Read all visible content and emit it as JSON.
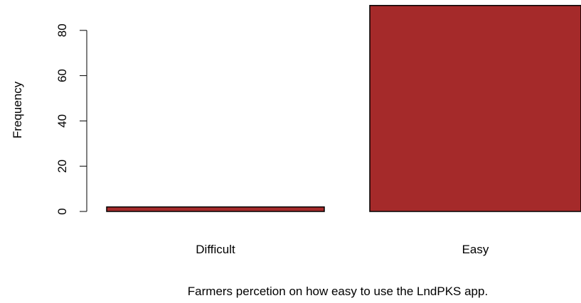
{
  "chart_data": {
    "type": "bar",
    "categories": [
      "Difficult",
      "Easy"
    ],
    "values": [
      2,
      91
    ],
    "xlabel": "Farmers percetion on how easy to use the LndPKS app.",
    "ylabel": "Frequency",
    "yticks": [
      "0",
      "20",
      "40",
      "60",
      "80"
    ],
    "ylim": [
      0,
      91
    ],
    "grid": false,
    "legend": false,
    "bar_color": "#a52a2a",
    "bar_border_color": "#000000"
  }
}
